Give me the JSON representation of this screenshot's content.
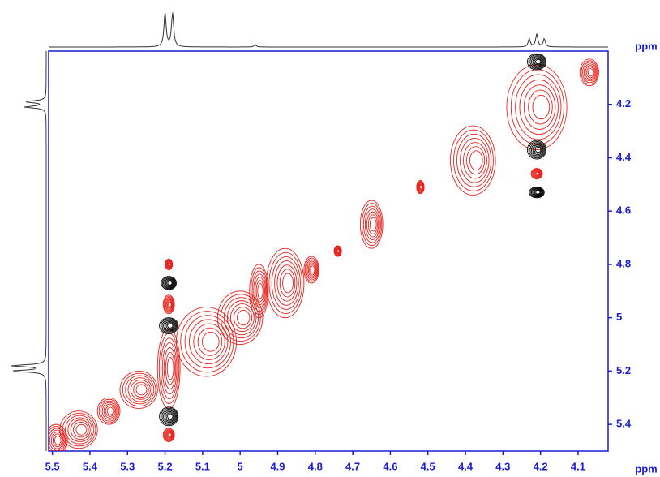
{
  "chart_data": {
    "type": "contour",
    "x_label": "ppm",
    "y_label": "ppm",
    "xlim": [
      5.51,
      4.02
    ],
    "ylim": [
      4.0,
      5.5
    ],
    "xticks": [
      5.5,
      5.4,
      5.3,
      5.2,
      5.1,
      5.0,
      4.9,
      4.8,
      4.7,
      4.6,
      4.5,
      4.4,
      4.3,
      4.2,
      4.1
    ],
    "yticks": [
      4.2,
      4.4,
      4.6,
      4.8,
      5.0,
      5.2,
      5.4
    ],
    "axis_color": "#1a1ad6",
    "projection_peaks_x": [
      5.2,
      5.18,
      4.96,
      4.23,
      4.21,
      4.19
    ],
    "projection_peaks_y": [
      4.19,
      4.21,
      5.18,
      5.2
    ],
    "series": [
      {
        "color": "#e8221c",
        "x": [
          5.49,
          5.43,
          5.35,
          5.27,
          5.19,
          5.09,
          5.0,
          4.95,
          4.88,
          4.81,
          4.74,
          4.65,
          4.52,
          4.38,
          4.21,
          4.07,
          5.19,
          5.19,
          5.19,
          4.21
        ],
        "y": [
          5.46,
          5.42,
          5.35,
          5.27,
          5.19,
          5.09,
          5.0,
          4.9,
          4.87,
          4.82,
          4.75,
          4.65,
          4.51,
          4.41,
          4.21,
          4.08,
          4.8,
          4.95,
          5.44,
          4.46
        ],
        "w": [
          0.06,
          0.1,
          0.06,
          0.1,
          0.06,
          0.16,
          0.12,
          0.05,
          0.1,
          0.04,
          0.02,
          0.06,
          0.02,
          0.12,
          0.16,
          0.05,
          0.02,
          0.03,
          0.03,
          0.03
        ],
        "h": [
          0.12,
          0.14,
          0.1,
          0.14,
          0.3,
          0.26,
          0.2,
          0.2,
          0.26,
          0.1,
          0.04,
          0.18,
          0.05,
          0.26,
          0.32,
          0.1,
          0.04,
          0.07,
          0.05,
          0.04
        ]
      },
      {
        "color": "#000000",
        "x": [
          4.21,
          4.21,
          4.21,
          5.19,
          5.19,
          5.19
        ],
        "y": [
          4.04,
          4.37,
          4.53,
          5.03,
          5.37,
          4.87
        ],
        "w": [
          0.05,
          0.05,
          0.04,
          0.05,
          0.05,
          0.04
        ],
        "h": [
          0.06,
          0.07,
          0.04,
          0.06,
          0.07,
          0.05
        ]
      }
    ]
  }
}
